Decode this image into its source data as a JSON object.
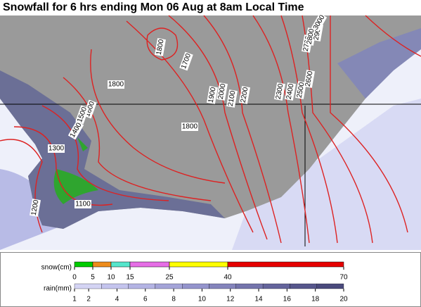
{
  "title": "Snowfall for 6 hrs ending Mon 06 Aug at 8am Local Time",
  "contour_labels": [
    1800,
    1700,
    1800,
    1900,
    2000,
    2100,
    2200,
    2300,
    2400,
    2500,
    2600,
    2700,
    2800,
    2900,
    3000,
    1600,
    1500,
    1400,
    1300,
    1800,
    1200,
    1100
  ],
  "snow_legend": {
    "label": "snow(cm)",
    "ticks": [
      0,
      5,
      10,
      15,
      25,
      40,
      70
    ],
    "colors": [
      "#00cc00",
      "#ee8c1c",
      "#55e6cc",
      "#e66ee6",
      "#ffff00",
      "#e60000"
    ]
  },
  "rain_legend": {
    "label": "rain(mm)",
    "ticks": [
      1,
      2,
      4,
      6,
      8,
      10,
      12,
      14,
      16,
      18,
      20
    ],
    "colors": [
      "#d4d4f4",
      "#c4c4ee",
      "#b4b4e4",
      "#a4a4d8",
      "#9494cc",
      "#8484bc",
      "#7474ac",
      "#64649c",
      "#56568c",
      "#4a4a7c"
    ]
  }
}
